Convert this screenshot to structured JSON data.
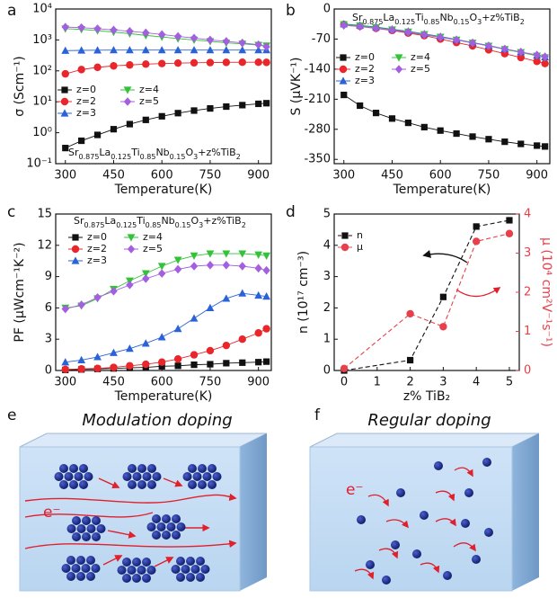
{
  "chart_data": [
    {
      "type": "line",
      "label": "a",
      "xlabel": "Temperature(K)",
      "ylabel": "σ (Scm⁻¹)",
      "log_y": true,
      "legend": "lower-left",
      "formula": [
        "Sr",
        "0.875",
        "La",
        "0.125",
        "Ti",
        "0.85",
        "Nb",
        "0.15",
        "O",
        "3",
        "+z%TiB",
        "2"
      ],
      "x": [
        300,
        350,
        400,
        450,
        500,
        550,
        600,
        650,
        700,
        750,
        800,
        850,
        900,
        925
      ],
      "xlim": [
        270,
        940
      ],
      "xticks": [
        300,
        450,
        600,
        750,
        900
      ],
      "ylim": [
        0.1,
        10000
      ],
      "yticks": [
        {
          "value": 0.1,
          "label": "10⁻¹"
        },
        {
          "value": 1,
          "label": "10⁰"
        },
        {
          "value": 10,
          "label": "10¹"
        },
        {
          "value": 100,
          "label": "10²"
        },
        {
          "value": 1000,
          "label": "10³"
        },
        {
          "value": 10000,
          "label": "10⁴"
        }
      ],
      "series": [
        {
          "name": "z=0",
          "color": "#111111",
          "marker": "square",
          "values": [
            0.32,
            0.55,
            0.85,
            1.3,
            1.9,
            2.6,
            3.4,
            4.3,
            5.2,
            6.1,
            7,
            7.8,
            8.6,
            9
          ]
        },
        {
          "name": "z=2",
          "color": "#e8262b",
          "marker": "circle",
          "values": [
            80,
            110,
            130,
            145,
            155,
            165,
            172,
            178,
            182,
            185,
            188,
            190,
            190,
            188
          ]
        },
        {
          "name": "z=3",
          "color": "#2a62d8",
          "marker": "triangle-up",
          "values": [
            450,
            460,
            465,
            470,
            470,
            470,
            470,
            470,
            470,
            470,
            470,
            470,
            470,
            470
          ]
        },
        {
          "name": "z=4",
          "color": "#33c23a",
          "marker": "triangle-down",
          "values": [
            2300,
            2200,
            2000,
            1800,
            1600,
            1400,
            1250,
            1100,
            1000,
            900,
            800,
            750,
            680,
            650
          ]
        },
        {
          "name": "z=5",
          "color": "#a45ee0",
          "marker": "diamond",
          "values": [
            2600,
            2500,
            2300,
            2100,
            1900,
            1700,
            1500,
            1300,
            1150,
            1000,
            900,
            800,
            700,
            600
          ]
        }
      ]
    },
    {
      "type": "line",
      "label": "b",
      "xlabel": "Temperature(K)",
      "ylabel": "S (μVK⁻¹)",
      "legend": "upper-left",
      "formula": [
        "Sr",
        "0.875",
        "La",
        "0.125",
        "Ti",
        "0.85",
        "Nb",
        "0.15",
        "O",
        "3",
        "+z%TiB",
        "2"
      ],
      "x": [
        300,
        350,
        400,
        450,
        500,
        550,
        600,
        650,
        700,
        750,
        800,
        850,
        900,
        925
      ],
      "xlim": [
        270,
        940
      ],
      "xticks": [
        300,
        450,
        600,
        750,
        900
      ],
      "ylim": [
        -360,
        0
      ],
      "yticks": [
        -350,
        -280,
        -210,
        -140,
        -70,
        0
      ],
      "series": [
        {
          "name": "z=0",
          "color": "#111111",
          "marker": "square",
          "values": [
            -200,
            -225,
            -242,
            -255,
            -265,
            -275,
            -283,
            -290,
            -297,
            -303,
            -309,
            -314,
            -318,
            -320
          ]
        },
        {
          "name": "z=2",
          "color": "#e8262b",
          "marker": "circle",
          "values": [
            -36,
            -40,
            -45,
            -50,
            -56,
            -62,
            -70,
            -78,
            -86,
            -95,
            -104,
            -113,
            -122,
            -127
          ]
        },
        {
          "name": "z=3",
          "color": "#2a62d8",
          "marker": "triangle-up",
          "values": [
            -35,
            -38,
            -42,
            -47,
            -52,
            -58,
            -64,
            -71,
            -78,
            -85,
            -93,
            -100,
            -108,
            -112
          ]
        },
        {
          "name": "z=4",
          "color": "#33c23a",
          "marker": "triangle-down",
          "values": [
            -36,
            -39,
            -43,
            -48,
            -53,
            -59,
            -65,
            -72,
            -79,
            -86,
            -94,
            -101,
            -109,
            -113
          ]
        },
        {
          "name": "z=5",
          "color": "#a45ee0",
          "marker": "diamond",
          "values": [
            -38,
            -41,
            -45,
            -49,
            -54,
            -60,
            -66,
            -72,
            -79,
            -86,
            -93,
            -100,
            -107,
            -111
          ]
        }
      ]
    },
    {
      "type": "line",
      "label": "c",
      "xlabel": "Temperature(K)",
      "ylabel": "PF (μWcm⁻¹K⁻²)",
      "legend": "upper-left",
      "formula": [
        "Sr",
        "0.875",
        "La",
        "0.125",
        "Ti",
        "0.85",
        "Nb",
        "0.15",
        "O",
        "3",
        "+z%TiB",
        "2"
      ],
      "x": [
        300,
        350,
        400,
        450,
        500,
        550,
        600,
        650,
        700,
        750,
        800,
        850,
        900,
        925
      ],
      "xlim": [
        270,
        940
      ],
      "xticks": [
        300,
        450,
        600,
        750,
        900
      ],
      "ylim": [
        0,
        15
      ],
      "yticks": [
        0,
        3,
        6,
        9,
        12,
        15
      ],
      "series": [
        {
          "name": "z=0",
          "color": "#111111",
          "marker": "square",
          "values": [
            0.05,
            0.1,
            0.15,
            0.2,
            0.25,
            0.3,
            0.4,
            0.45,
            0.55,
            0.6,
            0.7,
            0.75,
            0.8,
            0.85
          ]
        },
        {
          "name": "z=2",
          "color": "#e8262b",
          "marker": "circle",
          "values": [
            0.1,
            0.15,
            0.2,
            0.3,
            0.45,
            0.6,
            0.8,
            1.1,
            1.5,
            1.9,
            2.4,
            3,
            3.6,
            4
          ]
        },
        {
          "name": "z=3",
          "color": "#2a62d8",
          "marker": "triangle-up",
          "values": [
            0.8,
            1,
            1.3,
            1.7,
            2.1,
            2.6,
            3.2,
            4,
            5,
            6,
            6.9,
            7.4,
            7.2,
            7.1
          ]
        },
        {
          "name": "z=4",
          "color": "#33c23a",
          "marker": "triangle-down",
          "values": [
            6,
            6.2,
            6.9,
            7.8,
            8.6,
            9.3,
            10,
            10.6,
            11,
            11.2,
            11.2,
            11.2,
            11.1,
            11
          ]
        },
        {
          "name": "z=5",
          "color": "#a45ee0",
          "marker": "diamond",
          "values": [
            5.9,
            6.3,
            7,
            7.6,
            8.2,
            8.8,
            9.3,
            9.7,
            10,
            10.1,
            10.1,
            10,
            9.8,
            9.6
          ]
        }
      ]
    },
    {
      "type": "scatter",
      "label": "d",
      "xlabel": "z% TiB₂",
      "ylabel": "n (10¹⁷ cm⁻³)",
      "y2label": "μ (10⁴ cm²V⁻¹s⁻¹)",
      "legend": "upper-left",
      "x": [
        0,
        2,
        3,
        4,
        5
      ],
      "xlim": [
        -0.3,
        5.3
      ],
      "xticks": [
        0,
        1,
        2,
        3,
        4,
        5
      ],
      "ylim": [
        0,
        5
      ],
      "yticks": [
        0,
        1,
        2,
        3,
        4,
        5
      ],
      "y2lim": [
        0,
        4
      ],
      "y2ticks": [
        0,
        1,
        2,
        3,
        4
      ],
      "series": [
        {
          "name": "n",
          "color": "#111111",
          "marker": "square",
          "line": "dashed",
          "values": [
            0,
            0.33,
            2.35,
            4.6,
            4.8
          ]
        },
        {
          "name": "μ",
          "color": "#e8404a",
          "marker": "circle",
          "line": "dashed",
          "axis": "y2",
          "values": [
            0.05,
            1.45,
            1.12,
            3.3,
            3.5
          ]
        }
      ]
    }
  ],
  "diagrams": [
    {
      "label": "e",
      "title": "Modulation doping",
      "electron": "e⁻"
    },
    {
      "label": "f",
      "title": "Regular doping",
      "electron": "e⁻"
    }
  ]
}
